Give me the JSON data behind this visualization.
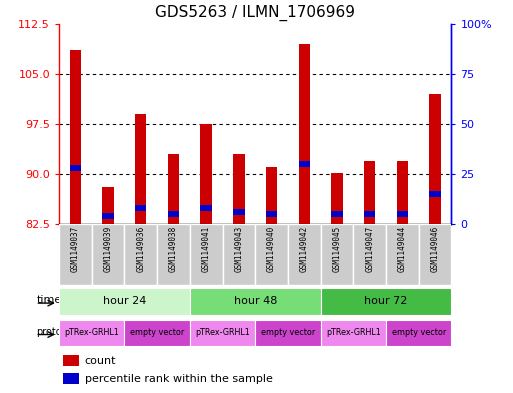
{
  "title": "GDS5263 / ILMN_1706969",
  "samples": [
    "GSM1149037",
    "GSM1149039",
    "GSM1149036",
    "GSM1149038",
    "GSM1149041",
    "GSM1149043",
    "GSM1149040",
    "GSM1149042",
    "GSM1149045",
    "GSM1149047",
    "GSM1149044",
    "GSM1149046"
  ],
  "red_values": [
    108.5,
    88.0,
    99.0,
    93.0,
    97.5,
    93.0,
    91.0,
    109.5,
    90.2,
    92.0,
    92.0,
    102.0
  ],
  "blue_percentiles": [
    28.0,
    4.0,
    8.0,
    5.0,
    8.0,
    6.0,
    5.0,
    30.0,
    5.0,
    5.0,
    5.0,
    15.0
  ],
  "y_min": 82.5,
  "y_max": 112.5,
  "y_ticks": [
    82.5,
    90.0,
    97.5,
    105.0,
    112.5
  ],
  "right_y_labels": [
    "0",
    "25",
    "50",
    "75",
    "100%"
  ],
  "time_groups": [
    {
      "label": "hour 24",
      "start": 0,
      "end": 3,
      "color": "#ccf5cc"
    },
    {
      "label": "hour 48",
      "start": 4,
      "end": 7,
      "color": "#66dd66"
    },
    {
      "label": "hour 72",
      "start": 8,
      "end": 11,
      "color": "#44cc44"
    }
  ],
  "protocol_groups": [
    {
      "label": "pTRex-GRHL1",
      "start": 0,
      "end": 1,
      "color": "#ee88ee"
    },
    {
      "label": "empty vector",
      "start": 2,
      "end": 3,
      "color": "#dd55dd"
    },
    {
      "label": "pTRex-GRHL1",
      "start": 4,
      "end": 5,
      "color": "#ee88ee"
    },
    {
      "label": "empty vector",
      "start": 6,
      "end": 7,
      "color": "#dd55dd"
    },
    {
      "label": "pTRex-GRHL1",
      "start": 8,
      "end": 9,
      "color": "#ee88ee"
    },
    {
      "label": "empty vector",
      "start": 10,
      "end": 11,
      "color": "#dd55dd"
    }
  ],
  "bar_color": "#cc0000",
  "blue_color": "#0000cc",
  "bar_width": 0.35,
  "sample_bg_color": "#cccccc",
  "fig_width": 5.13,
  "fig_height": 3.93,
  "dpi": 100
}
